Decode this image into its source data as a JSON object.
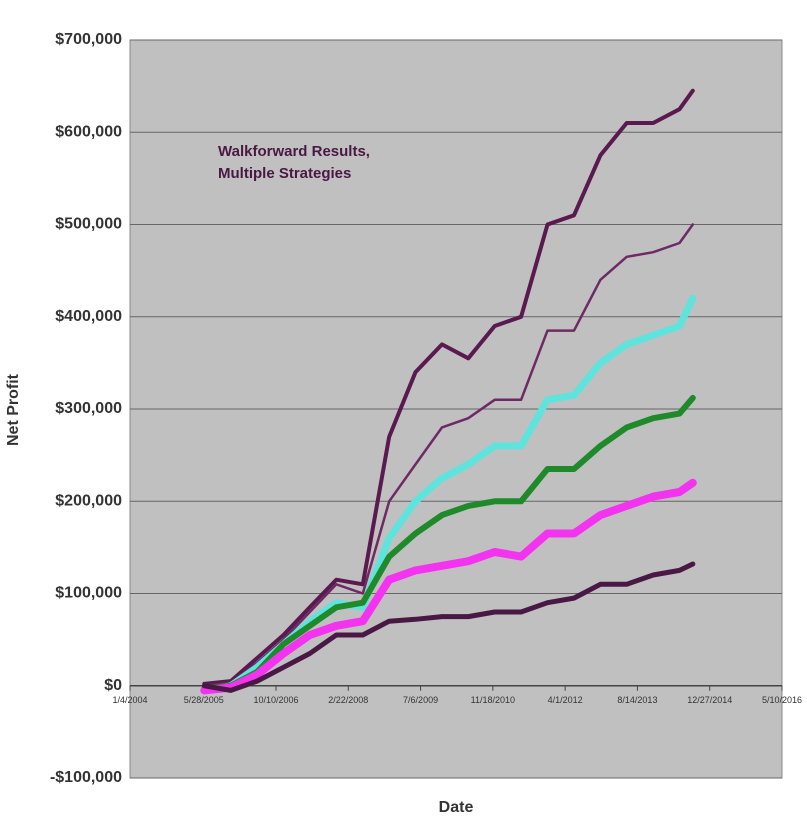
{
  "chart_data": {
    "type": "line",
    "annotation": [
      "Walkforward Results,",
      "Multiple Strategies"
    ],
    "x_label": "Date",
    "y_label": "Net Profit",
    "x": [
      "2005-06-01",
      "2005-12-01",
      "2006-06-01",
      "2006-12-01",
      "2007-06-01",
      "2007-12-01",
      "2008-06-01",
      "2008-12-01",
      "2009-06-01",
      "2009-12-01",
      "2010-06-01",
      "2010-12-01",
      "2011-06-01",
      "2011-12-01",
      "2012-06-01",
      "2012-12-01",
      "2013-06-01",
      "2013-12-01",
      "2014-06-01",
      "2014-09-01"
    ],
    "series": [
      {
        "color": "#5a1a50",
        "values": [
          2000,
          5000,
          30000,
          55000,
          85000,
          115000,
          110000,
          270000,
          340000,
          370000,
          355000,
          390000,
          400000,
          500000,
          510000,
          575000,
          610000,
          610000,
          625000,
          645000
        ]
      },
      {
        "color": "#6e2a64",
        "values": [
          0,
          3000,
          25000,
          50000,
          80000,
          110000,
          100000,
          200000,
          240000,
          280000,
          290000,
          310000,
          310000,
          385000,
          385000,
          440000,
          465000,
          470000,
          480000,
          500000
        ]
      },
      {
        "color": "#5fe3dd",
        "values": [
          -5000,
          0,
          20000,
          45000,
          70000,
          90000,
          85000,
          160000,
          200000,
          225000,
          240000,
          260000,
          260000,
          310000,
          315000,
          350000,
          370000,
          380000,
          390000,
          420000
        ]
      },
      {
        "color": "#1f8a2a",
        "values": [
          -3000,
          0,
          15000,
          45000,
          65000,
          85000,
          90000,
          140000,
          165000,
          185000,
          195000,
          200000,
          200000,
          235000,
          235000,
          260000,
          280000,
          290000,
          295000,
          312000
        ]
      },
      {
        "color": "#f433f0",
        "values": [
          -5000,
          -2000,
          12000,
          35000,
          55000,
          65000,
          70000,
          115000,
          125000,
          130000,
          135000,
          145000,
          140000,
          165000,
          165000,
          185000,
          195000,
          205000,
          210000,
          220000
        ]
      },
      {
        "color": "#4a1845",
        "values": [
          0,
          -5000,
          5000,
          20000,
          35000,
          55000,
          55000,
          70000,
          72000,
          75000,
          75000,
          80000,
          80000,
          90000,
          95000,
          110000,
          110000,
          120000,
          125000,
          132000
        ]
      }
    ],
    "xlim": [
      "2004-01-04",
      "2016-05-10"
    ],
    "xticks": [
      {
        "value": "2004-01-04",
        "label": "1/4/2004"
      },
      {
        "value": "2005-05-28",
        "label": "5/28/2005"
      },
      {
        "value": "2006-10-10",
        "label": "10/10/2006"
      },
      {
        "value": "2008-02-22",
        "label": "2/22/2008"
      },
      {
        "value": "2009-07-06",
        "label": "7/6/2009"
      },
      {
        "value": "2010-11-18",
        "label": "11/18/2010"
      },
      {
        "value": "2012-04-01",
        "label": "4/1/2012"
      },
      {
        "value": "2013-08-14",
        "label": "8/14/2013"
      },
      {
        "value": "2014-12-27",
        "label": "12/27/2014"
      },
      {
        "value": "2016-05-10",
        "label": "5/10/2016"
      }
    ],
    "ylim": [
      -100000,
      700000
    ],
    "yticks": [
      {
        "value": -100000,
        "label": "-$100,000"
      },
      {
        "value": 0,
        "label": "$0"
      },
      {
        "value": 100000,
        "label": "$100,000"
      },
      {
        "value": 200000,
        "label": "$200,000"
      },
      {
        "value": 300000,
        "label": "$300,000"
      },
      {
        "value": 400000,
        "label": "$400,000"
      },
      {
        "value": 500000,
        "label": "$500,000"
      },
      {
        "value": 600000,
        "label": "$600,000"
      },
      {
        "value": 700000,
        "label": "$700,000"
      }
    ],
    "grid": true
  }
}
